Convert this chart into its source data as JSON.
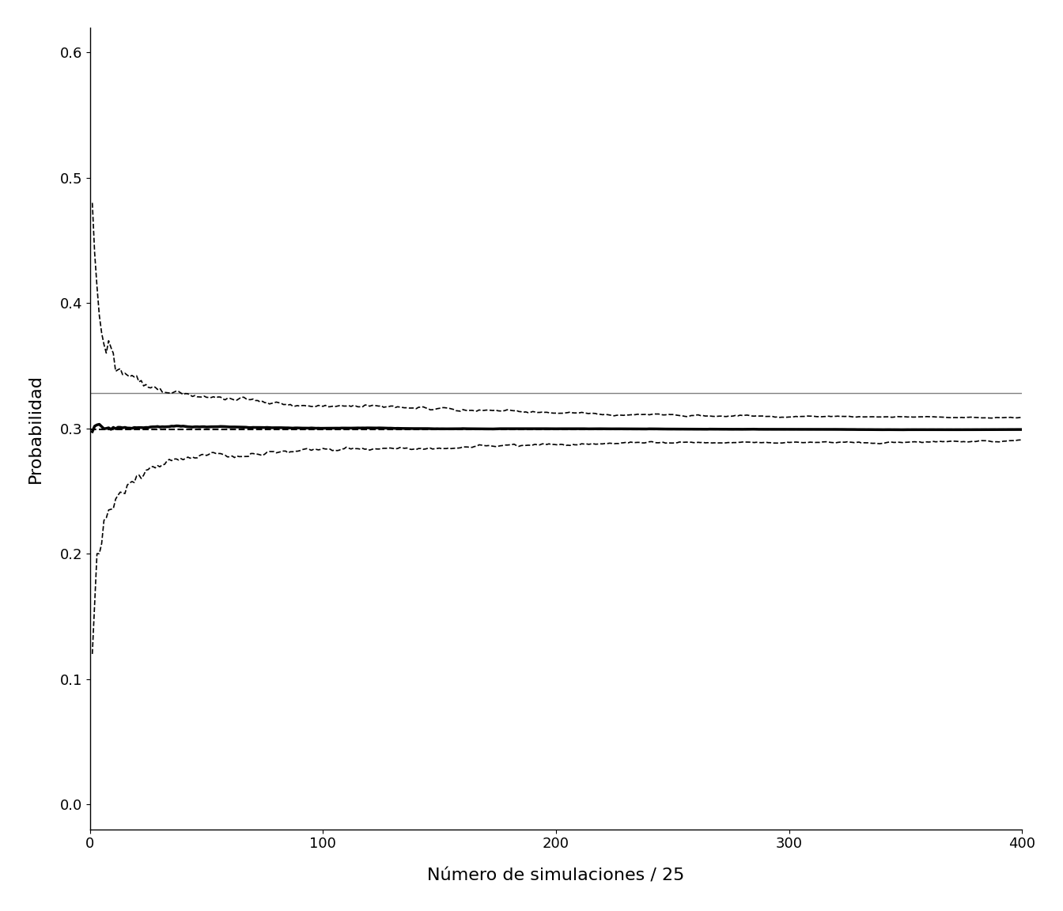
{
  "title": "",
  "xlabel": "Número de simulaciones / 25",
  "ylabel": "Probabilidad",
  "xlim": [
    0,
    400
  ],
  "ylim": [
    -0.02,
    0.62
  ],
  "xticks": [
    0,
    100,
    200,
    300,
    400
  ],
  "yticks": [
    0.0,
    0.1,
    0.2,
    0.3,
    0.4,
    0.5,
    0.6
  ],
  "hline_solid": 0.328,
  "hline_dashed": 0.299,
  "true_prob": 0.299,
  "figsize": [
    13.44,
    11.52
  ],
  "dpi": 100,
  "n_batches": 400,
  "batch_size": 25,
  "n_chains": 200,
  "seed": 12,
  "background_color": "#ffffff",
  "line_color_mean": "#000000",
  "line_color_ci": "#000000",
  "line_color_hsolid": "#808080",
  "line_color_hdashed": "#000000"
}
